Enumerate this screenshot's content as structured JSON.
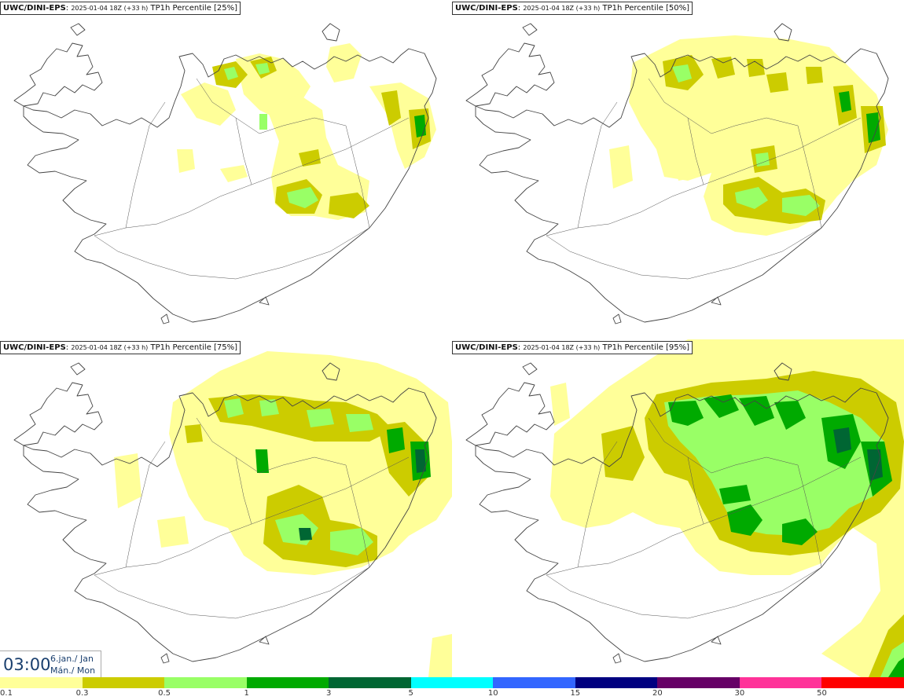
{
  "panels": [
    {
      "source": "UWC/DINI-EPS",
      "run": "2025-01-04 18Z (+33 h)",
      "product": "TP1h Percentile [25%]"
    },
    {
      "source": "UWC/DINI-EPS",
      "run": "2025-01-04 18Z (+33 h)",
      "product": "TP1h Percentile [50%]"
    },
    {
      "source": "UWC/DINI-EPS",
      "run": "2025-01-04 18Z (+33 h)",
      "product": "TP1h Percentile [75%]"
    },
    {
      "source": "UWC/DINI-EPS",
      "run": "2025-01-04 18Z (+33 h)",
      "product": "TP1h Percentile [95%]"
    }
  ],
  "valid_time": {
    "time": "03:00",
    "date_line1": "6.jan./ Jan",
    "date_line2": "Mán./ Mon"
  },
  "legend": {
    "labels": [
      "0.1",
      "0.3",
      "0.5",
      "1",
      "3",
      "5",
      "10",
      "15",
      "20",
      "30",
      "50"
    ],
    "colors": [
      "#ffff99",
      "#cccc00",
      "#99ff66",
      "#00aa00",
      "#006633",
      "#00ffff",
      "#3366ff",
      "#000080",
      "#660066",
      "#ff3399",
      "#ff0000"
    ]
  }
}
